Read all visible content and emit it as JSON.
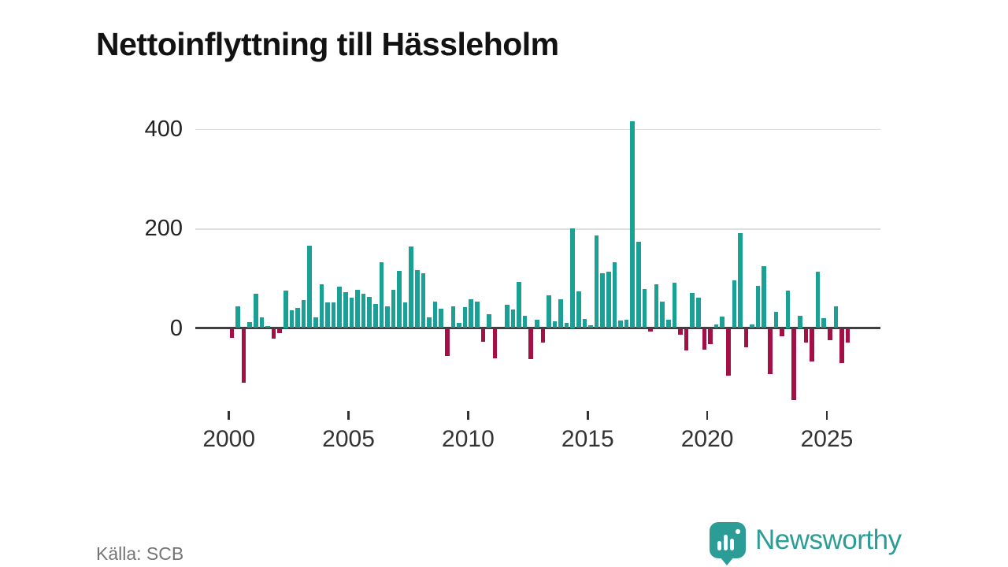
{
  "title": "Nettoinflyttning till Hässleholm",
  "source_label": "Källa: SCB",
  "branding": {
    "name": "Newsworthy",
    "logo_icon": "bar-chart-pin-icon"
  },
  "colors": {
    "positive_bar": "#1aa095",
    "negative_bar": "#a40f45",
    "gridline": "#dddddd",
    "baseline": "#3f3f3f",
    "axis_text": "#333333",
    "brand_teal": "#2b9d96",
    "source_text": "#757575"
  },
  "chart_data": {
    "type": "bar",
    "title": "Nettoinflyttning till Hässleholm",
    "frequency": "quarterly",
    "start": "2000 Q1",
    "end": "2025 Q4",
    "y_ticks": [
      0,
      200,
      400
    ],
    "ylim": [
      -165,
      440
    ],
    "x_tick_labels": [
      "2000",
      "2005",
      "2010",
      "2015",
      "2020",
      "2025"
    ],
    "grid": "horizontal",
    "legend": "none",
    "series": [
      {
        "year": 2000,
        "values": [
          -20,
          43,
          -110,
          12
        ]
      },
      {
        "year": 2001,
        "values": [
          68,
          22,
          4,
          -22
        ]
      },
      {
        "year": 2002,
        "values": [
          -10,
          75,
          36,
          41
        ]
      },
      {
        "year": 2003,
        "values": [
          56,
          165,
          21,
          88
        ]
      },
      {
        "year": 2004,
        "values": [
          51,
          52,
          83,
          72
        ]
      },
      {
        "year": 2005,
        "values": [
          61,
          76,
          68,
          63
        ]
      },
      {
        "year": 2006,
        "values": [
          48,
          132,
          43,
          76
        ]
      },
      {
        "year": 2007,
        "values": [
          115,
          51,
          163,
          116
        ]
      },
      {
        "year": 2008,
        "values": [
          110,
          21,
          53,
          39
        ]
      },
      {
        "year": 2009,
        "values": [
          -56,
          43,
          10,
          42
        ]
      },
      {
        "year": 2010,
        "values": [
          57,
          53,
          -27,
          27
        ]
      },
      {
        "year": 2011,
        "values": [
          -61,
          0,
          47,
          37
        ]
      },
      {
        "year": 2012,
        "values": [
          93,
          24,
          -62,
          16
        ]
      },
      {
        "year": 2013,
        "values": [
          -29,
          66,
          13,
          57
        ]
      },
      {
        "year": 2014,
        "values": [
          10,
          200,
          74,
          18
        ]
      },
      {
        "year": 2015,
        "values": [
          6,
          185,
          110,
          113
        ]
      },
      {
        "year": 2016,
        "values": [
          132,
          15,
          17,
          415
        ]
      },
      {
        "year": 2017,
        "values": [
          173,
          79,
          -7,
          87
        ]
      },
      {
        "year": 2018,
        "values": [
          53,
          17,
          91,
          -13
        ]
      },
      {
        "year": 2019,
        "values": [
          -45,
          70,
          61,
          -44
        ]
      },
      {
        "year": 2020,
        "values": [
          -33,
          7,
          23,
          -96
        ]
      },
      {
        "year": 2021,
        "values": [
          96,
          191,
          -39,
          7
        ]
      },
      {
        "year": 2022,
        "values": [
          84,
          124,
          -93,
          32
        ]
      },
      {
        "year": 2023,
        "values": [
          -17,
          75,
          -145,
          25
        ]
      },
      {
        "year": 2024,
        "values": [
          -29,
          -67,
          113,
          19
        ]
      },
      {
        "year": 2025,
        "values": [
          -25,
          43,
          -70,
          -29
        ]
      }
    ]
  }
}
